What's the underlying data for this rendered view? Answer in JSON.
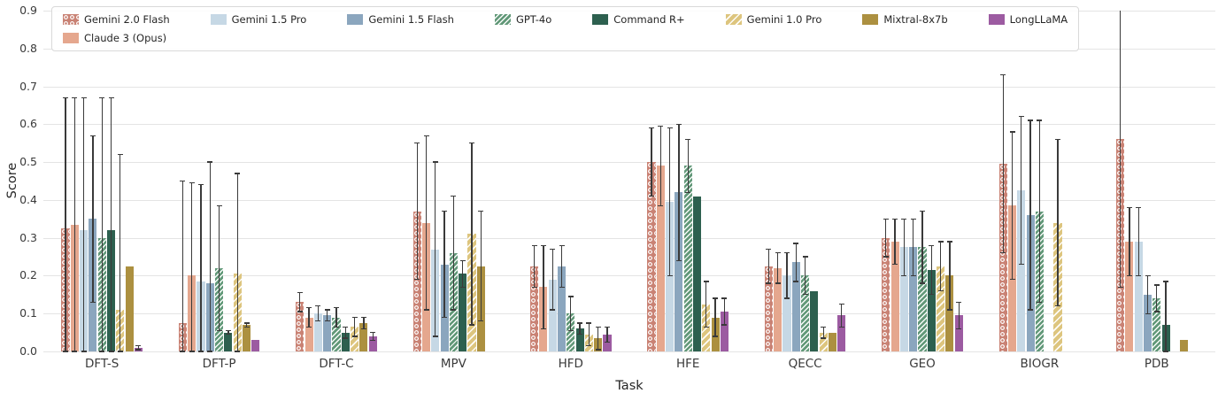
{
  "axes": {
    "ylabel": "Score",
    "xlabel": "Task"
  },
  "colors": {
    "background": "#ffffff",
    "grid": "#e4e4e4",
    "tick_text": "#3a3a3a",
    "error_bar": "#3a3a3a",
    "legend_border": "#d9d9d9"
  },
  "chart_data": {
    "type": "bar",
    "title": "",
    "xlabel": "Task",
    "ylabel": "Score",
    "ylim": [
      0,
      0.9
    ],
    "yticks": [
      0.0,
      0.1,
      0.2,
      0.3,
      0.4,
      0.5,
      0.6,
      0.7,
      0.8,
      0.9
    ],
    "grid": true,
    "legend_position": "upper-left inside plot, wrapped to 2 rows (Claude 3 (Opus) under Gemini 2.0 Flash)",
    "error_bars": "capped whiskers, approximately symmetric about bar top, clipped at 0; err_hi is upper whisker value",
    "categories": [
      "DFT-S",
      "DFT-P",
      "DFT-C",
      "MPV",
      "HFD",
      "HFE",
      "QECC",
      "GEO",
      "BIOGR",
      "PDB"
    ],
    "series": [
      {
        "name": "Gemini 2.0 Flash",
        "color": "#c98274",
        "hatch": "circle",
        "values": [
          0.325,
          0.075,
          0.13,
          0.37,
          0.225,
          0.5,
          0.225,
          0.3,
          0.495,
          0.56
        ],
        "err_hi": [
          0.67,
          0.45,
          0.155,
          0.55,
          0.28,
          0.59,
          0.27,
          0.35,
          0.73,
          0.95
        ]
      },
      {
        "name": "Claude 3 (Opus)",
        "color": "#e5a78e",
        "hatch": null,
        "values": [
          0.335,
          0.2,
          0.09,
          0.34,
          0.17,
          0.49,
          0.22,
          0.29,
          0.385,
          0.29
        ],
        "err_hi": [
          0.67,
          0.445,
          0.115,
          0.57,
          0.28,
          0.595,
          0.26,
          0.35,
          0.58,
          0.38
        ]
      },
      {
        "name": "Gemini 1.5 Pro",
        "color": "#c6d8e5",
        "hatch": null,
        "values": [
          0.32,
          0.185,
          0.1,
          0.27,
          0.19,
          0.395,
          0.2,
          0.275,
          0.425,
          0.29
        ],
        "err_hi": [
          0.67,
          0.44,
          0.12,
          0.5,
          0.27,
          0.59,
          0.26,
          0.35,
          0.62,
          0.38
        ]
      },
      {
        "name": "Gemini 1.5 Flash",
        "color": "#8ba6be",
        "hatch": null,
        "values": [
          0.35,
          0.18,
          0.095,
          0.23,
          0.225,
          0.42,
          0.235,
          0.275,
          0.36,
          0.15
        ],
        "err_hi": [
          0.57,
          0.5,
          0.11,
          0.37,
          0.28,
          0.6,
          0.285,
          0.35,
          0.61,
          0.2
        ]
      },
      {
        "name": "GPT-4o",
        "color": "#619878",
        "hatch": "diag",
        "values": [
          0.3,
          0.22,
          0.09,
          0.26,
          0.1,
          0.49,
          0.2,
          0.275,
          0.37,
          0.14
        ],
        "err_hi": [
          0.67,
          0.385,
          0.115,
          0.41,
          0.145,
          0.56,
          0.25,
          0.37,
          0.61,
          0.175
        ]
      },
      {
        "name": "Command R+",
        "color": "#2d604f",
        "hatch": null,
        "values": [
          0.32,
          0.05,
          0.05,
          0.205,
          0.06,
          0.41,
          0.16,
          0.215,
          0.0,
          0.07
        ],
        "err_hi": [
          0.67,
          0.055,
          0.065,
          0.24,
          0.075,
          0.41,
          0.16,
          0.28,
          0.0,
          0.185
        ]
      },
      {
        "name": "Gemini 1.0 Pro",
        "color": "#ddc57e",
        "hatch": "diag-sparse",
        "values": [
          0.11,
          0.205,
          0.065,
          0.31,
          0.045,
          0.125,
          0.05,
          0.225,
          0.34,
          0.0
        ],
        "err_hi": [
          0.52,
          0.47,
          0.09,
          0.55,
          0.075,
          0.185,
          0.065,
          0.29,
          0.56,
          0.0
        ]
      },
      {
        "name": "Mixtral-8x7b",
        "color": "#ac9040",
        "hatch": null,
        "values": [
          0.225,
          0.07,
          0.075,
          0.225,
          0.035,
          0.09,
          0.05,
          0.2,
          0.0,
          0.03
        ],
        "err_hi": [
          0.225,
          0.075,
          0.09,
          0.37,
          0.065,
          0.14,
          0.05,
          0.29,
          0.0,
          0.03
        ]
      },
      {
        "name": "LongLLaMA",
        "color": "#9c5ba1",
        "hatch": null,
        "values": [
          0.01,
          0.03,
          0.04,
          0.0,
          0.045,
          0.105,
          0.095,
          0.095,
          0.0,
          0.0
        ],
        "err_hi": [
          0.015,
          0.03,
          0.05,
          0.0,
          0.065,
          0.14,
          0.125,
          0.13,
          0.0,
          0.0
        ]
      }
    ]
  }
}
